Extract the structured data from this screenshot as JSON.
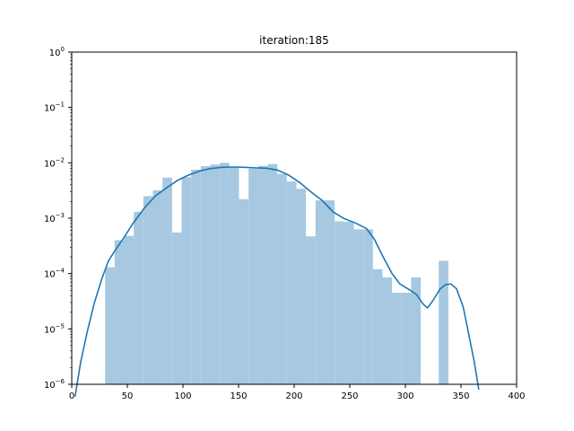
{
  "chart_data": {
    "type": "bar",
    "title": "iteration:185",
    "xlabel": "",
    "ylabel": "",
    "xlim": [
      0,
      400
    ],
    "ylim": [
      1e-06,
      1
    ],
    "yscale": "log",
    "grid": false,
    "bar_color": "#a6c8e0",
    "line_color": "#1f77b4",
    "x_ticks": [
      {
        "value": 0,
        "label": "0"
      },
      {
        "value": 50,
        "label": "50"
      },
      {
        "value": 100,
        "label": "100"
      },
      {
        "value": 150,
        "label": "150"
      },
      {
        "value": 200,
        "label": "200"
      },
      {
        "value": 250,
        "label": "250"
      },
      {
        "value": 300,
        "label": "300"
      },
      {
        "value": 350,
        "label": "350"
      },
      {
        "value": 400,
        "label": "400"
      }
    ],
    "y_ticks": [
      {
        "value": 1e-06,
        "base": "10",
        "exp": "−6"
      },
      {
        "value": 1e-05,
        "base": "10",
        "exp": "−5"
      },
      {
        "value": 0.0001,
        "base": "10",
        "exp": "−4"
      },
      {
        "value": 0.001,
        "base": "10",
        "exp": "−3"
      },
      {
        "value": 0.01,
        "base": "10",
        "exp": "−2"
      },
      {
        "value": 0.1,
        "base": "10",
        "exp": "−1"
      },
      {
        "value": 1,
        "base": "10",
        "exp": "0"
      }
    ],
    "bin_width": 8.6,
    "bins": [
      {
        "x0": 30,
        "value": 0.00013
      },
      {
        "x0": 38.6,
        "value": 0.0004
      },
      {
        "x0": 47.2,
        "value": 0.00048
      },
      {
        "x0": 55.8,
        "value": 0.0013
      },
      {
        "x0": 64.4,
        "value": 0.0025
      },
      {
        "x0": 73.0,
        "value": 0.0032
      },
      {
        "x0": 81.6,
        "value": 0.0054
      },
      {
        "x0": 90.2,
        "value": 0.00055
      },
      {
        "x0": 98.8,
        "value": 0.0055
      },
      {
        "x0": 107.4,
        "value": 0.0075
      },
      {
        "x0": 116.0,
        "value": 0.0087
      },
      {
        "x0": 124.6,
        "value": 0.0093
      },
      {
        "x0": 133.2,
        "value": 0.01
      },
      {
        "x0": 141.8,
        "value": 0.0082
      },
      {
        "x0": 150.4,
        "value": 0.0022
      },
      {
        "x0": 159.0,
        "value": 0.0078
      },
      {
        "x0": 167.6,
        "value": 0.0088
      },
      {
        "x0": 176.2,
        "value": 0.0095
      },
      {
        "x0": 184.8,
        "value": 0.0063
      },
      {
        "x0": 193.4,
        "value": 0.0046
      },
      {
        "x0": 202.0,
        "value": 0.0034
      },
      {
        "x0": 210.6,
        "value": 0.00047
      },
      {
        "x0": 219.2,
        "value": 0.0021
      },
      {
        "x0": 227.8,
        "value": 0.0021
      },
      {
        "x0": 236.4,
        "value": 0.00088
      },
      {
        "x0": 245.0,
        "value": 0.00086
      },
      {
        "x0": 253.6,
        "value": 0.00063
      },
      {
        "x0": 262.2,
        "value": 0.00063
      },
      {
        "x0": 270.8,
        "value": 0.00012
      },
      {
        "x0": 279.4,
        "value": 8.5e-05
      },
      {
        "x0": 288.0,
        "value": 4.5e-05
      },
      {
        "x0": 296.6,
        "value": 4.5e-05
      },
      {
        "x0": 305.2,
        "value": 8.5e-05
      },
      {
        "x0": 330.0,
        "value": 0.00017
      }
    ],
    "kde": [
      [
        3,
        6e-07
      ],
      [
        8,
        2.5e-06
      ],
      [
        14,
        9e-06
      ],
      [
        20,
        2.8e-05
      ],
      [
        27,
        8e-05
      ],
      [
        33,
        0.00017
      ],
      [
        40,
        0.00028
      ],
      [
        47,
        0.00045
      ],
      [
        55,
        0.0008
      ],
      [
        65,
        0.0015
      ],
      [
        75,
        0.0025
      ],
      [
        85,
        0.0035
      ],
      [
        95,
        0.0048
      ],
      [
        105,
        0.006
      ],
      [
        115,
        0.0071
      ],
      [
        125,
        0.0079
      ],
      [
        135,
        0.0083
      ],
      [
        145,
        0.0084
      ],
      [
        155,
        0.0083
      ],
      [
        165,
        0.0081
      ],
      [
        175,
        0.008
      ],
      [
        185,
        0.0074
      ],
      [
        195,
        0.006
      ],
      [
        205,
        0.0044
      ],
      [
        215,
        0.003
      ],
      [
        225,
        0.0021
      ],
      [
        235,
        0.0013
      ],
      [
        245,
        0.00098
      ],
      [
        255,
        0.00082
      ],
      [
        265,
        0.00065
      ],
      [
        272,
        0.00042
      ],
      [
        280,
        0.0002
      ],
      [
        288,
        0.0001
      ],
      [
        295,
        6.5e-05
      ],
      [
        303,
        5.2e-05
      ],
      [
        310,
        4.2e-05
      ],
      [
        316,
        2.8e-05
      ],
      [
        320,
        2.4e-05
      ],
      [
        325,
        3.3e-05
      ],
      [
        331,
        5.2e-05
      ],
      [
        336,
        6.3e-05
      ],
      [
        341,
        6.5e-05
      ],
      [
        346,
        5.3e-05
      ],
      [
        352,
        2.5e-05
      ],
      [
        357,
        8e-06
      ],
      [
        362,
        2.5e-06
      ],
      [
        366,
        8e-07
      ]
    ]
  }
}
